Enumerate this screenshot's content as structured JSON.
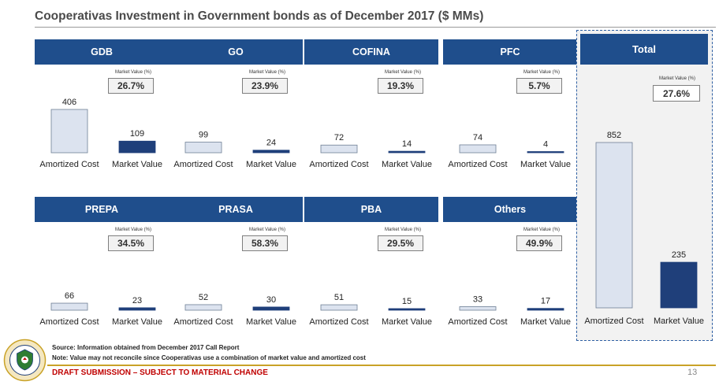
{
  "title": "Cooperativas Investment in Government bonds as of December 2017 ($ MMs)",
  "market_value_label": "Market Value (%)",
  "category_labels": [
    "Amortized Cost",
    "Market Value"
  ],
  "colors": {
    "header": "#1f4e8c",
    "amortized": "#dce3ef",
    "market": "#1f3f7a",
    "accent": "#c9a227",
    "draft": "#c00000"
  },
  "chart_data": [
    {
      "type": "bar",
      "title": "GDB",
      "categories": [
        "Amortized Cost",
        "Market Value"
      ],
      "values": [
        406,
        109
      ],
      "market_value_pct": "26.7%"
    },
    {
      "type": "bar",
      "title": "GO",
      "categories": [
        "Amortized Cost",
        "Market Value"
      ],
      "values": [
        99,
        24
      ],
      "market_value_pct": "23.9%"
    },
    {
      "type": "bar",
      "title": "COFINA",
      "categories": [
        "Amortized Cost",
        "Market Value"
      ],
      "values": [
        72,
        14
      ],
      "market_value_pct": "19.3%"
    },
    {
      "type": "bar",
      "title": "PFC",
      "categories": [
        "Amortized Cost",
        "Market Value"
      ],
      "values": [
        74,
        4
      ],
      "market_value_pct": "5.7%"
    },
    {
      "type": "bar",
      "title": "PREPA",
      "categories": [
        "Amortized Cost",
        "Market Value"
      ],
      "values": [
        66,
        23
      ],
      "market_value_pct": "34.5%"
    },
    {
      "type": "bar",
      "title": "PRASA",
      "categories": [
        "Amortized Cost",
        "Market Value"
      ],
      "values": [
        52,
        30
      ],
      "market_value_pct": "58.3%"
    },
    {
      "type": "bar",
      "title": "PBA",
      "categories": [
        "Amortized Cost",
        "Market Value"
      ],
      "values": [
        51,
        15
      ],
      "market_value_pct": "29.5%"
    },
    {
      "type": "bar",
      "title": "Others",
      "categories": [
        "Amortized Cost",
        "Market Value"
      ],
      "values": [
        33,
        17
      ],
      "market_value_pct": "49.9%"
    },
    {
      "type": "bar",
      "title": "Total",
      "categories": [
        "Amortized Cost",
        "Market Value"
      ],
      "values": [
        852,
        235
      ],
      "market_value_pct": "27.6%"
    }
  ],
  "footer": {
    "source": "Source: Information obtained from December 2017 Call Report",
    "note": "Note: Value may not reconcile since Cooperativas use a combination of market value and amortized cost",
    "draft": "DRAFT SUBMISSION – SUBJECT TO MATERIAL CHANGE",
    "page_number": "13"
  },
  "seal_text": "GOVERNMENT OF PUERTO RICO",
  "seal_icon": "government-seal-icon"
}
